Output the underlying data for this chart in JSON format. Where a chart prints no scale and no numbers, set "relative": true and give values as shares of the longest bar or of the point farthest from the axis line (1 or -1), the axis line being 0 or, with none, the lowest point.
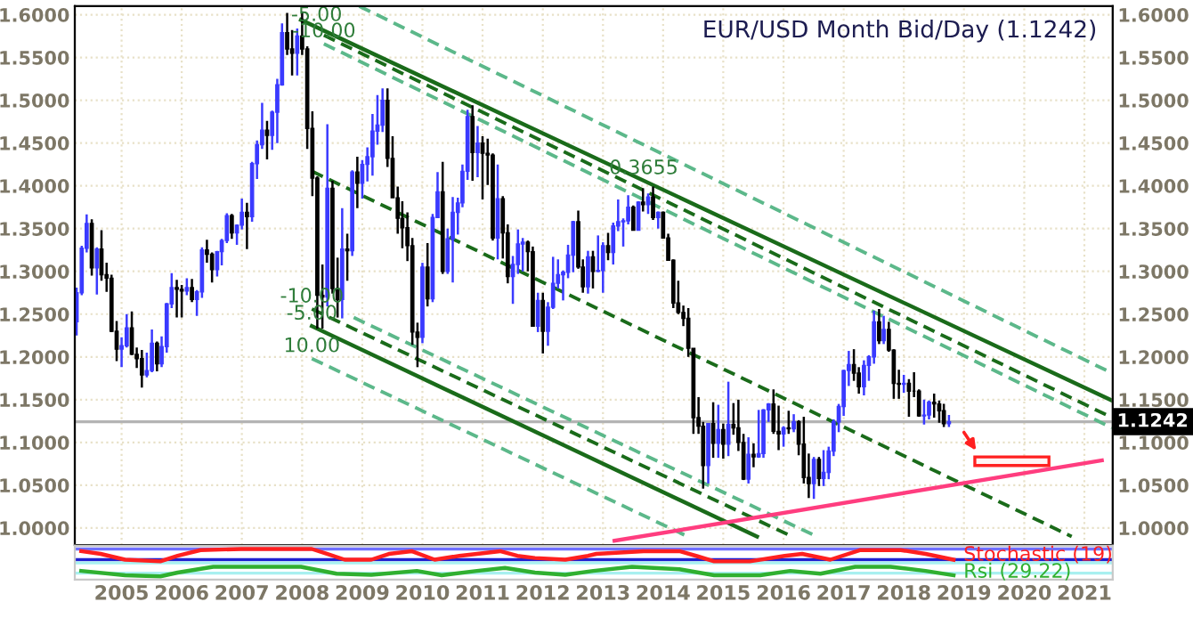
{
  "chart_data": [
    {
      "type": "candlestick",
      "title": "EUR/USD Month Bid/Day (1.1242)",
      "x": [
        "2004-10",
        "2004-11",
        "2004-12",
        "2005-01",
        "2005-02",
        "2005-03",
        "2005-04",
        "2005-05",
        "2005-06",
        "2005-07",
        "2005-08",
        "2005-09",
        "2005-10",
        "2005-11",
        "2005-12",
        "2006-01",
        "2006-02",
        "2006-03",
        "2006-04",
        "2006-05",
        "2006-06",
        "2006-07",
        "2006-08",
        "2006-09",
        "2006-10",
        "2006-11",
        "2006-12",
        "2007-01",
        "2007-02",
        "2007-03",
        "2007-04",
        "2007-05",
        "2007-06",
        "2007-07",
        "2007-08",
        "2007-09",
        "2007-10",
        "2007-11",
        "2007-12",
        "2008-01",
        "2008-02",
        "2008-03",
        "2008-04",
        "2008-05",
        "2008-06",
        "2008-07",
        "2008-08",
        "2008-09",
        "2008-10",
        "2008-11",
        "2008-12",
        "2009-01",
        "2009-02",
        "2009-03",
        "2009-04",
        "2009-05",
        "2009-06",
        "2009-07",
        "2009-08",
        "2009-09",
        "2009-10",
        "2009-11",
        "2009-12",
        "2010-01",
        "2010-02",
        "2010-03",
        "2010-04",
        "2010-05",
        "2010-06",
        "2010-07",
        "2010-08",
        "2010-09",
        "2010-10",
        "2010-11",
        "2010-12",
        "2011-01",
        "2011-02",
        "2011-03",
        "2011-04",
        "2011-05",
        "2011-06",
        "2011-07",
        "2011-08",
        "2011-09",
        "2011-10",
        "2011-11",
        "2011-12",
        "2012-01",
        "2012-02",
        "2012-03",
        "2012-04",
        "2012-05",
        "2012-06",
        "2012-07",
        "2012-08",
        "2012-09",
        "2012-10",
        "2012-11",
        "2012-12",
        "2013-01",
        "2013-02",
        "2013-03",
        "2013-04",
        "2013-05",
        "2013-06",
        "2013-07",
        "2013-08",
        "2013-09",
        "2013-10",
        "2013-11",
        "2013-12",
        "2014-01",
        "2014-02",
        "2014-03",
        "2014-04",
        "2014-05",
        "2014-06",
        "2014-07",
        "2014-08",
        "2014-09",
        "2014-10",
        "2014-11",
        "2014-12",
        "2015-01",
        "2015-02",
        "2015-03",
        "2015-04",
        "2015-05",
        "2015-06",
        "2015-07",
        "2015-08",
        "2015-09",
        "2015-10",
        "2015-11",
        "2015-12",
        "2016-01",
        "2016-02",
        "2016-03",
        "2016-04",
        "2016-05",
        "2016-06",
        "2016-07",
        "2016-08",
        "2016-09",
        "2016-10",
        "2016-11",
        "2016-12",
        "2017-01",
        "2017-02",
        "2017-03",
        "2017-04",
        "2017-05",
        "2017-06",
        "2017-07",
        "2017-08",
        "2017-09",
        "2017-10",
        "2017-11",
        "2017-12",
        "2018-01",
        "2018-02",
        "2018-03",
        "2018-04",
        "2018-05",
        "2018-06",
        "2018-07",
        "2018-08",
        "2018-09",
        "2018-10",
        "2018-11",
        "2018-12",
        "2019-01",
        "2019-02",
        "2019-03",
        "2019-04"
      ],
      "ohlc": [
        [
          1.241,
          1.281,
          1.225,
          1.275
        ],
        [
          1.275,
          1.33,
          1.272,
          1.327
        ],
        [
          1.327,
          1.3667,
          1.322,
          1.356
        ],
        [
          1.356,
          1.361,
          1.295,
          1.304
        ],
        [
          1.304,
          1.328,
          1.273,
          1.326
        ],
        [
          1.326,
          1.348,
          1.289,
          1.296
        ],
        [
          1.296,
          1.31,
          1.276,
          1.292
        ],
        [
          1.292,
          1.296,
          1.229,
          1.23
        ],
        [
          1.23,
          1.242,
          1.195,
          1.209
        ],
        [
          1.209,
          1.223,
          1.188,
          1.213
        ],
        [
          1.213,
          1.25,
          1.211,
          1.234
        ],
        [
          1.234,
          1.253,
          1.202,
          1.203
        ],
        [
          1.203,
          1.211,
          1.187,
          1.198
        ],
        [
          1.198,
          1.208,
          1.164,
          1.179
        ],
        [
          1.179,
          1.205,
          1.176,
          1.184
        ],
        [
          1.184,
          1.232,
          1.182,
          1.216
        ],
        [
          1.216,
          1.218,
          1.183,
          1.192
        ],
        [
          1.192,
          1.224,
          1.188,
          1.212
        ],
        [
          1.212,
          1.263,
          1.205,
          1.262
        ],
        [
          1.262,
          1.298,
          1.257,
          1.281
        ],
        [
          1.281,
          1.29,
          1.246,
          1.279
        ],
        [
          1.279,
          1.284,
          1.246,
          1.277
        ],
        [
          1.277,
          1.292,
          1.272,
          1.281
        ],
        [
          1.281,
          1.291,
          1.264,
          1.267
        ],
        [
          1.267,
          1.278,
          1.248,
          1.276
        ],
        [
          1.276,
          1.328,
          1.269,
          1.325
        ],
        [
          1.325,
          1.337,
          1.31,
          1.32
        ],
        [
          1.32,
          1.322,
          1.287,
          1.302
        ],
        [
          1.302,
          1.324,
          1.294,
          1.323
        ],
        [
          1.323,
          1.338,
          1.307,
          1.336
        ],
        [
          1.336,
          1.368,
          1.333,
          1.365
        ],
        [
          1.365,
          1.367,
          1.338,
          1.345
        ],
        [
          1.345,
          1.355,
          1.331,
          1.354
        ],
        [
          1.354,
          1.385,
          1.349,
          1.369
        ],
        [
          1.369,
          1.38,
          1.326,
          1.364
        ],
        [
          1.364,
          1.428,
          1.358,
          1.426
        ],
        [
          1.426,
          1.453,
          1.408,
          1.448
        ],
        [
          1.448,
          1.497,
          1.443,
          1.465
        ],
        [
          1.465,
          1.476,
          1.431,
          1.459
        ],
        [
          1.459,
          1.488,
          1.442,
          1.486
        ],
        [
          1.486,
          1.525,
          1.45,
          1.518
        ],
        [
          1.518,
          1.59,
          1.517,
          1.579
        ],
        [
          1.579,
          1.602,
          1.553,
          1.56
        ],
        [
          1.56,
          1.582,
          1.529,
          1.555
        ],
        [
          1.555,
          1.584,
          1.529,
          1.575
        ],
        [
          1.575,
          1.604,
          1.553,
          1.56
        ],
        [
          1.56,
          1.563,
          1.443,
          1.467
        ],
        [
          1.467,
          1.487,
          1.388,
          1.409
        ],
        [
          1.409,
          1.411,
          1.233,
          1.272
        ],
        [
          1.272,
          1.308,
          1.233,
          1.27
        ],
        [
          1.27,
          1.472,
          1.259,
          1.397
        ],
        [
          1.397,
          1.406,
          1.274,
          1.28
        ],
        [
          1.28,
          1.316,
          1.246,
          1.267
        ],
        [
          1.267,
          1.374,
          1.245,
          1.326
        ],
        [
          1.326,
          1.344,
          1.289,
          1.324
        ],
        [
          1.324,
          1.418,
          1.318,
          1.416
        ],
        [
          1.416,
          1.434,
          1.374,
          1.403
        ],
        [
          1.403,
          1.43,
          1.385,
          1.425
        ],
        [
          1.425,
          1.445,
          1.405,
          1.434
        ],
        [
          1.434,
          1.484,
          1.412,
          1.464
        ],
        [
          1.464,
          1.506,
          1.448,
          1.471
        ],
        [
          1.471,
          1.514,
          1.463,
          1.5
        ],
        [
          1.5,
          1.514,
          1.422,
          1.432
        ],
        [
          1.432,
          1.458,
          1.386,
          1.386
        ],
        [
          1.386,
          1.399,
          1.344,
          1.362
        ],
        [
          1.362,
          1.382,
          1.327,
          1.351
        ],
        [
          1.351,
          1.369,
          1.312,
          1.33
        ],
        [
          1.33,
          1.339,
          1.214,
          1.229
        ],
        [
          1.229,
          1.24,
          1.188,
          1.223
        ],
        [
          1.223,
          1.31,
          1.216,
          1.305
        ],
        [
          1.305,
          1.333,
          1.259,
          1.268
        ],
        [
          1.268,
          1.367,
          1.264,
          1.363
        ],
        [
          1.363,
          1.416,
          1.363,
          1.393
        ],
        [
          1.393,
          1.428,
          1.297,
          1.3
        ],
        [
          1.3,
          1.35,
          1.297,
          1.338
        ],
        [
          1.338,
          1.387,
          1.287,
          1.369
        ],
        [
          1.369,
          1.386,
          1.343,
          1.38
        ],
        [
          1.38,
          1.425,
          1.375,
          1.417
        ],
        [
          1.417,
          1.489,
          1.407,
          1.481
        ],
        [
          1.481,
          1.494,
          1.406,
          1.439
        ],
        [
          1.439,
          1.47,
          1.41,
          1.45
        ],
        [
          1.45,
          1.458,
          1.384,
          1.438
        ],
        [
          1.438,
          1.455,
          1.401,
          1.436
        ],
        [
          1.436,
          1.438,
          1.336,
          1.339
        ],
        [
          1.339,
          1.425,
          1.314,
          1.385
        ],
        [
          1.385,
          1.388,
          1.315,
          1.345
        ],
        [
          1.345,
          1.355,
          1.286,
          1.294
        ],
        [
          1.294,
          1.318,
          1.262,
          1.308
        ],
        [
          1.308,
          1.349,
          1.297,
          1.332
        ],
        [
          1.332,
          1.339,
          1.3,
          1.334
        ],
        [
          1.334,
          1.336,
          1.3,
          1.323
        ],
        [
          1.323,
          1.329,
          1.236,
          1.236
        ],
        [
          1.236,
          1.275,
          1.229,
          1.266
        ],
        [
          1.266,
          1.275,
          1.204,
          1.23
        ],
        [
          1.23,
          1.264,
          1.213,
          1.258
        ],
        [
          1.258,
          1.317,
          1.256,
          1.286
        ],
        [
          1.286,
          1.314,
          1.28,
          1.296
        ],
        [
          1.296,
          1.301,
          1.266,
          1.299
        ],
        [
          1.299,
          1.331,
          1.292,
          1.319
        ],
        [
          1.319,
          1.359,
          1.299,
          1.358
        ],
        [
          1.358,
          1.371,
          1.303,
          1.305
        ],
        [
          1.305,
          1.314,
          1.275,
          1.282
        ],
        [
          1.282,
          1.324,
          1.274,
          1.317
        ],
        [
          1.317,
          1.324,
          1.28,
          1.3
        ],
        [
          1.3,
          1.342,
          1.299,
          1.301
        ],
        [
          1.301,
          1.334,
          1.275,
          1.33
        ],
        [
          1.33,
          1.345,
          1.313,
          1.322
        ],
        [
          1.322,
          1.357,
          1.308,
          1.353
        ],
        [
          1.353,
          1.384,
          1.347,
          1.358
        ],
        [
          1.358,
          1.362,
          1.329,
          1.359
        ],
        [
          1.359,
          1.389,
          1.355,
          1.375
        ],
        [
          1.375,
          1.377,
          1.348,
          1.348
        ],
        [
          1.348,
          1.382,
          1.348,
          1.381
        ],
        [
          1.381,
          1.397,
          1.37,
          1.378
        ],
        [
          1.378,
          1.391,
          1.367,
          1.387
        ],
        [
          1.387,
          1.399,
          1.36,
          1.363
        ],
        [
          1.363,
          1.37,
          1.35,
          1.369
        ],
        [
          1.369,
          1.37,
          1.339,
          1.339
        ],
        [
          1.339,
          1.344,
          1.313,
          1.313
        ],
        [
          1.313,
          1.314,
          1.257,
          1.263
        ],
        [
          1.263,
          1.289,
          1.25,
          1.252
        ],
        [
          1.252,
          1.26,
          1.236,
          1.245
        ],
        [
          1.245,
          1.257,
          1.2,
          1.21
        ],
        [
          1.21,
          1.21,
          1.11,
          1.129
        ],
        [
          1.129,
          1.153,
          1.11,
          1.119
        ],
        [
          1.119,
          1.124,
          1.046,
          1.073
        ],
        [
          1.073,
          1.122,
          1.052,
          1.122
        ],
        [
          1.122,
          1.147,
          1.082,
          1.099
        ],
        [
          1.099,
          1.144,
          1.082,
          1.115
        ],
        [
          1.115,
          1.122,
          1.081,
          1.098
        ],
        [
          1.098,
          1.171,
          1.084,
          1.121
        ],
        [
          1.121,
          1.146,
          1.109,
          1.117
        ],
        [
          1.117,
          1.15,
          1.09,
          1.1
        ],
        [
          1.1,
          1.11,
          1.056,
          1.057
        ],
        [
          1.057,
          1.106,
          1.052,
          1.086
        ],
        [
          1.086,
          1.099,
          1.071,
          1.083
        ],
        [
          1.083,
          1.138,
          1.082,
          1.087
        ],
        [
          1.087,
          1.139,
          1.082,
          1.138
        ],
        [
          1.138,
          1.146,
          1.124,
          1.145
        ],
        [
          1.145,
          1.162,
          1.11,
          1.113
        ],
        [
          1.113,
          1.143,
          1.091,
          1.11
        ],
        [
          1.11,
          1.119,
          1.095,
          1.117
        ],
        [
          1.117,
          1.137,
          1.11,
          1.116
        ],
        [
          1.116,
          1.133,
          1.112,
          1.124
        ],
        [
          1.124,
          1.126,
          1.085,
          1.098
        ],
        [
          1.098,
          1.13,
          1.052,
          1.059
        ],
        [
          1.059,
          1.087,
          1.035,
          1.052
        ],
        [
          1.052,
          1.083,
          1.034,
          1.08
        ],
        [
          1.08,
          1.083,
          1.049,
          1.058
        ],
        [
          1.058,
          1.091,
          1.049,
          1.065
        ],
        [
          1.065,
          1.095,
          1.057,
          1.09
        ],
        [
          1.09,
          1.127,
          1.084,
          1.124
        ],
        [
          1.124,
          1.145,
          1.112,
          1.142
        ],
        [
          1.142,
          1.185,
          1.131,
          1.184
        ],
        [
          1.184,
          1.207,
          1.166,
          1.191
        ],
        [
          1.191,
          1.209,
          1.172,
          1.181
        ],
        [
          1.181,
          1.188,
          1.157,
          1.165
        ],
        [
          1.165,
          1.196,
          1.155,
          1.19
        ],
        [
          1.19,
          1.202,
          1.172,
          1.2
        ],
        [
          1.2,
          1.254,
          1.192,
          1.241
        ],
        [
          1.241,
          1.256,
          1.215,
          1.219
        ],
        [
          1.219,
          1.248,
          1.215,
          1.232
        ],
        [
          1.232,
          1.241,
          1.206,
          1.208
        ],
        [
          1.208,
          1.209,
          1.151,
          1.169
        ],
        [
          1.169,
          1.185,
          1.151,
          1.168
        ],
        [
          1.168,
          1.179,
          1.158,
          1.169
        ],
        [
          1.169,
          1.174,
          1.13,
          1.16
        ],
        [
          1.16,
          1.182,
          1.153,
          1.16
        ],
        [
          1.16,
          1.162,
          1.13,
          1.131
        ],
        [
          1.131,
          1.15,
          1.121,
          1.132
        ],
        [
          1.132,
          1.149,
          1.127,
          1.147
        ],
        [
          1.147,
          1.157,
          1.129,
          1.145
        ],
        [
          1.145,
          1.149,
          1.123,
          1.137
        ],
        [
          1.137,
          1.145,
          1.118,
          1.122
        ],
        [
          1.122,
          1.132,
          1.118,
          1.1242
        ]
      ],
      "colors": [
        "#3a3aff",
        "#3a3aff",
        "#3a3aff",
        "#000000",
        "#3a3aff",
        "#000000",
        "#000000",
        "#000000",
        "#000000",
        "#3a3aff",
        "#3a3aff",
        "#000000",
        "#000000",
        "#000000",
        "#3a3aff",
        "#3a3aff",
        "#000000",
        "#3a3aff",
        "#3a3aff",
        "#3a3aff",
        "#000000",
        "#000000",
        "#3a3aff",
        "#000000",
        "#3a3aff",
        "#3a3aff",
        "#000000",
        "#000000",
        "#3a3aff",
        "#3a3aff",
        "#3a3aff",
        "#000000",
        "#3a3aff",
        "#3a3aff",
        "#000000",
        "#3a3aff",
        "#3a3aff",
        "#3a3aff",
        "#000000",
        "#3a3aff",
        "#3a3aff",
        "#3a3aff",
        "#000000",
        "#000000",
        "#3a3aff",
        "#000000",
        "#000000",
        "#000000",
        "#000000",
        "#000000",
        "#3a3aff",
        "#000000",
        "#000000",
        "#3a3aff",
        "#000000",
        "#3a3aff",
        "#000000",
        "#3a3aff",
        "#3a3aff",
        "#3a3aff",
        "#3a3aff",
        "#3a3aff",
        "#000000",
        "#000000",
        "#000000",
        "#000000",
        "#000000",
        "#000000",
        "#000000",
        "#3a3aff",
        "#000000",
        "#3a3aff",
        "#3a3aff",
        "#000000",
        "#3a3aff",
        "#3a3aff",
        "#3a3aff",
        "#3a3aff",
        "#3a3aff",
        "#000000",
        "#3a3aff",
        "#000000",
        "#000000",
        "#000000",
        "#3a3aff",
        "#000000",
        "#000000",
        "#3a3aff",
        "#3a3aff",
        "#3a3aff",
        "#000000",
        "#000000",
        "#3a3aff",
        "#000000",
        "#3a3aff",
        "#3a3aff",
        "#3a3aff",
        "#3a3aff",
        "#3a3aff",
        "#3a3aff",
        "#000000",
        "#000000",
        "#3a3aff",
        "#000000",
        "#3a3aff",
        "#3a3aff",
        "#000000",
        "#3a3aff",
        "#3a3aff",
        "#3a3aff",
        "#3a3aff",
        "#000000",
        "#3a3aff",
        "#000000",
        "#3a3aff",
        "#000000",
        "#3a3aff",
        "#000000",
        "#000000",
        "#000000",
        "#000000",
        "#000000",
        "#000000",
        "#000000",
        "#000000",
        "#000000",
        "#3a3aff",
        "#000000",
        "#3a3aff",
        "#000000",
        "#3a3aff",
        "#000000",
        "#000000",
        "#000000",
        "#3a3aff",
        "#000000",
        "#3a3aff",
        "#3a3aff",
        "#3a3aff",
        "#000000",
        "#000000",
        "#3a3aff",
        "#000000",
        "#3a3aff",
        "#000000",
        "#000000",
        "#000000",
        "#3a3aff",
        "#000000",
        "#3a3aff",
        "#3a3aff",
        "#3a3aff",
        "#3a3aff",
        "#3a3aff",
        "#3a3aff",
        "#000000",
        "#000000",
        "#3a3aff",
        "#3a3aff",
        "#3a3aff",
        "#000000",
        "#3a3aff",
        "#000000",
        "#000000",
        "#000000",
        "#3a3aff",
        "#000000",
        "#000000",
        "#000000",
        "#3a3aff",
        "#3a3aff",
        "#000000",
        "#000000",
        "#000000",
        "#3a3aff"
      ],
      "series": [
        {
          "type": "line",
          "color": "#5cb88a",
          "line_style": "dashed",
          "x": [
            "2009-06-13",
            "2021-12-16"
          ],
          "values": [
            1.61,
            1.181
          ]
        },
        {
          "type": "line",
          "color": "#1a6b1a",
          "line_style": "solid",
          "x": [
            "2008-06-24",
            "2021-12-16"
          ],
          "values": [
            1.594,
            1.149
          ]
        },
        {
          "type": "line",
          "color": "#1a6b1a",
          "line_style": "dashed",
          "x": [
            "2008-11-10",
            "2021-12-16"
          ],
          "values": [
            1.576,
            1.129
          ]
        },
        {
          "type": "line",
          "color": "#5cb88a",
          "line_style": "dashed",
          "x": [
            "2008-11-10",
            "2021-12-16"
          ],
          "values": [
            1.566,
            1.117
          ]
        },
        {
          "type": "line",
          "color": "#1a6b1a",
          "line_style": "dashed",
          "x": [
            "2008-08-29",
            "2021-04-15"
          ],
          "values": [
            1.417,
            0.99
          ]
        },
        {
          "type": "line",
          "color": "#5cb88a",
          "line_style": "dashed",
          "x": [
            "2009-05-10",
            "2017-01-19"
          ],
          "values": [
            1.246,
            0.99
          ]
        },
        {
          "type": "line",
          "color": "#1a6b1a",
          "line_style": "dashed",
          "x": [
            "2008-08-29",
            "2016-08-21"
          ],
          "values": [
            1.256,
            0.99
          ]
        },
        {
          "type": "line",
          "color": "#1a6b1a",
          "line_style": "solid",
          "x": [
            "2008-08-29",
            "2016-01-22"
          ],
          "values": [
            1.236,
            0.99
          ]
        },
        {
          "type": "line",
          "color": "#5cb88a",
          "line_style": "dashed",
          "x": [
            "2008-08-29",
            "2014-11-28"
          ],
          "values": [
            1.198,
            0.99
          ]
        },
        {
          "type": "line",
          "color": "#ff3d7f",
          "line_style": "solid",
          "x": [
            "2013-09-09",
            "2021-10-15"
          ],
          "values": [
            0.985,
            1.079
          ]
        },
        {
          "type": "bar",
          "color": "#ff2020",
          "x": [
            "2020-04-17"
          ],
          "base": [
            1.073
          ],
          "values": [
            0.01
          ]
        }
      ],
      "annotations": [
        {
          "text": "-5.00",
          "x": "2008-09-27",
          "y": 1.585
        },
        {
          "text": "-10.00",
          "x": "2008-11-10",
          "y": 1.566
        },
        {
          "text": "0.3655",
          "x": "2014-03-05",
          "y": 1.406
        },
        {
          "text": "-10.00",
          "x": "2008-08-29",
          "y": 1.256
        },
        {
          "text": "-5.00",
          "x": "2008-08-29",
          "y": 1.236
        },
        {
          "text": "10.00",
          "x": "2008-08-29",
          "y": 1.198
        }
      ],
      "ref_lines": [
        {
          "axis": "y",
          "value": 1.1242,
          "label": "1.1242",
          "color": "#b4b4b4"
        }
      ],
      "xlim": [
        "2004-09-20",
        "2021-12-20"
      ],
      "xticks": [
        {
          "value": "2005-07-01",
          "label": null
        },
        {
          "value": "2006-07-01",
          "label": null
        },
        {
          "value": "2007-07-01",
          "label": null
        },
        {
          "value": "2008-07-01",
          "label": null
        },
        {
          "value": "2009-07-01",
          "label": null
        },
        {
          "value": "2010-07-01",
          "label": null
        },
        {
          "value": "2011-07-01",
          "label": null
        },
        {
          "value": "2012-07-01",
          "label": null
        },
        {
          "value": "2013-07-01",
          "label": null
        },
        {
          "value": "2014-07-01",
          "label": null
        },
        {
          "value": "2015-07-01",
          "label": null
        },
        {
          "value": "2016-07-01",
          "label": null
        },
        {
          "value": "2017-07-01",
          "label": null
        },
        {
          "value": "2018-07-01",
          "label": null
        },
        {
          "value": "2019-07-01",
          "label": null
        },
        {
          "value": "2020-07-01",
          "label": null
        },
        {
          "value": "2021-07-01",
          "label": null
        }
      ],
      "ylim": [
        0.98,
        1.61
      ],
      "yticks": [
        {
          "value": 1.0,
          "label": "1.0000"
        },
        {
          "value": 1.05,
          "label": "1.0500"
        },
        {
          "value": 1.1,
          "label": "1.1000"
        },
        {
          "value": 1.15,
          "label": "1.1500"
        },
        {
          "value": 1.2,
          "label": "1.2000"
        },
        {
          "value": 1.25,
          "label": "1.2500"
        },
        {
          "value": 1.3,
          "label": "1.3000"
        },
        {
          "value": 1.35,
          "label": "1.3500"
        },
        {
          "value": 1.4,
          "label": "1.4000"
        },
        {
          "value": 1.45,
          "label": "1.4500"
        },
        {
          "value": 1.5,
          "label": "1.5000"
        },
        {
          "value": 1.55,
          "label": "1.5500"
        },
        {
          "value": 1.6,
          "label": "1.6000"
        }
      ],
      "y2lim": [
        0.98,
        1.61
      ],
      "y2ticks": [
        {
          "value": 1.0,
          "label": "1.0000"
        },
        {
          "value": 1.05,
          "label": "1.0500"
        },
        {
          "value": 1.1,
          "label": "1.1000"
        },
        {
          "value": 1.15,
          "label": "1.1500"
        },
        {
          "value": 1.2,
          "label": "1.2000"
        },
        {
          "value": 1.25,
          "label": "1.2500"
        },
        {
          "value": 1.3,
          "label": "1.3000"
        },
        {
          "value": 1.35,
          "label": "1.3500"
        },
        {
          "value": 1.4,
          "label": "1.4000"
        },
        {
          "value": 1.45,
          "label": "1.4500"
        },
        {
          "value": 1.5,
          "label": "1.5000"
        },
        {
          "value": 1.55,
          "label": "1.5500"
        },
        {
          "value": 1.6,
          "label": "1.6000"
        }
      ],
      "grid": true,
      "tick_labels": "y"
    },
    {
      "type": "line",
      "relative": true,
      "series": [
        {
          "name": "Stochastic (19)",
          "color": "#ff2020",
          "x": [
            "2004-10-29",
            "2005-02-24",
            "2005-07-22",
            "2006-02-21",
            "2006-06-06",
            "2006-10-23",
            "2007-06-27",
            "2008-08-29",
            "2008-12-02",
            "2009-03-16",
            "2009-08-25",
            "2009-12-09",
            "2010-04-26",
            "2010-09-13",
            "2011-02-10",
            "2011-05-28",
            "2011-10-15",
            "2012-01-29",
            "2012-05-14",
            "2012-11-14",
            "2013-04-01",
            "2013-05-21",
            "2014-03-05",
            "2014-10-08",
            "2015-01-22",
            "2015-05-07",
            "2015-12-09",
            "2016-07-08",
            "2016-10-22",
            "2017-04-11",
            "2017-10-11",
            "2018-06-13",
            "2018-11-10",
            "2019-04-29"
          ],
          "values": [
            0.92,
            0.82,
            0.61,
            0.55,
            0.75,
            0.96,
            1.0,
            1.0,
            0.82,
            0.61,
            0.61,
            0.82,
            0.92,
            0.61,
            0.75,
            0.82,
            0.92,
            0.75,
            0.67,
            0.61,
            0.75,
            0.82,
            0.92,
            0.92,
            0.74,
            0.55,
            0.55,
            0.75,
            0.82,
            0.61,
            0.96,
            0.96,
            0.82,
            0.61
          ]
        },
        {
          "name": "Rsi (29.22)",
          "color": "#30b030",
          "x": [
            "2004-10-29",
            "2005-07-22",
            "2006-02-21",
            "2006-06-06",
            "2007-01-08",
            "2008-06-24",
            "2009-01-26",
            "2009-08-25",
            "2010-05-28",
            "2010-10-26",
            "2011-05-28",
            "2011-11-14",
            "2012-05-14",
            "2012-11-14",
            "2013-05-03",
            "2013-12-24",
            "2014-10-08",
            "2015-05-07",
            "2016-02-10",
            "2016-08-10",
            "2017-02-10",
            "2017-09-09",
            "2018-04-11",
            "2018-11-10",
            "2019-04-29"
          ],
          "values": [
            0.2,
            0.04,
            0.0,
            0.14,
            0.35,
            0.35,
            0.1,
            0.06,
            0.2,
            0.04,
            0.2,
            0.31,
            0.14,
            0.06,
            0.2,
            0.35,
            0.26,
            0.04,
            0.04,
            0.2,
            0.1,
            0.35,
            0.35,
            0.2,
            0.04
          ]
        }
      ],
      "ref_lines": [
        {
          "axis": "y",
          "value": 1.0,
          "color": "#7070ff"
        },
        {
          "axis": "y",
          "value": 0.61,
          "color": "#2020d0"
        },
        {
          "axis": "y",
          "value": 0.49,
          "color": "#a8f0f0"
        },
        {
          "axis": "y",
          "value": 0.12,
          "color": "#a8f0f0"
        }
      ],
      "xlim": [
        "2004-09-20",
        "2021-12-20"
      ],
      "xticks": [
        {
          "value": "2005-07-01",
          "label": "2005"
        },
        {
          "value": "2006-07-01",
          "label": "2006"
        },
        {
          "value": "2007-07-01",
          "label": "2007"
        },
        {
          "value": "2008-07-01",
          "label": "2008"
        },
        {
          "value": "2009-07-01",
          "label": "2009"
        },
        {
          "value": "2010-07-01",
          "label": "2010"
        },
        {
          "value": "2011-07-01",
          "label": "2011"
        },
        {
          "value": "2012-07-01",
          "label": "2012"
        },
        {
          "value": "2013-07-01",
          "label": "2013"
        },
        {
          "value": "2014-07-01",
          "label": "2014"
        },
        {
          "value": "2015-07-01",
          "label": "2015"
        },
        {
          "value": "2016-07-01",
          "label": "2016"
        },
        {
          "value": "2017-07-01",
          "label": "2017"
        },
        {
          "value": "2018-07-01",
          "label": "2018"
        },
        {
          "value": "2019-07-01",
          "label": "2019"
        },
        {
          "value": "2020-07-01",
          "label": "2020"
        },
        {
          "value": "2021-07-01",
          "label": "2021"
        }
      ],
      "tick_labels": "x"
    }
  ]
}
